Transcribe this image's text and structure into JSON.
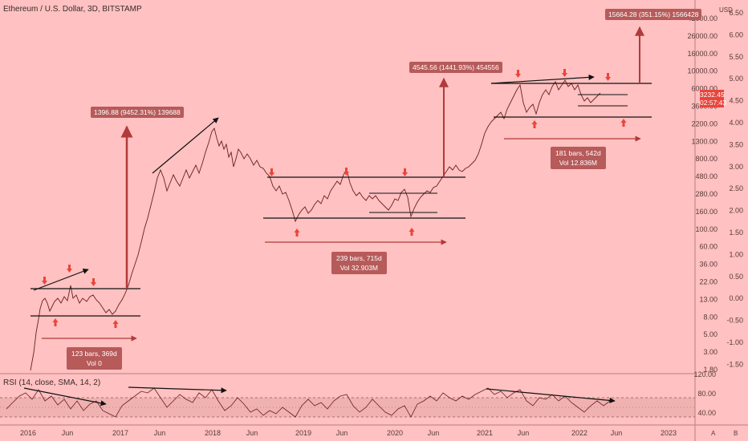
{
  "header": {
    "symbol_title": "Ethereum / U.S. Dollar, 3D, BITSTAMP",
    "rsi_title": "RSI (14, close, SMA, 14, 2)"
  },
  "price_tag": {
    "value": "3232.45",
    "countdown": "02:57:43"
  },
  "currency": "USD",
  "annotations": {
    "target1": "1396.88 (9452.31%) 139688",
    "target2": "4545.56 (1441.93%) 454556",
    "target3": "15664.28 (351.15%) 1566428",
    "range1_bars": "123 bars, 369d",
    "range1_vol": "Vol 0",
    "range2_bars": "239 bars, 715d",
    "range2_vol": "Vol 32.903M",
    "range3_bars": "181 bars, 542d",
    "range3_vol": "Vol 12.836M"
  },
  "axes": {
    "price_ticks": [
      "42000.00",
      "26000.00",
      "16000.00",
      "10000.00",
      "6000.00",
      "3600.00",
      "2200.00",
      "1300.00",
      "800.00",
      "480.00",
      "280.00",
      "160.00",
      "100.00",
      "60.00",
      "36.00",
      "22.00",
      "13.00",
      "8.00",
      "5.00",
      "3.00",
      "1.80"
    ],
    "right_ticks": [
      "6.50",
      "6.00",
      "5.50",
      "5.00",
      "4.50",
      "4.00",
      "3.50",
      "3.00",
      "2.50",
      "2.00",
      "1.50",
      "1.00",
      "0.50",
      "0.00",
      "-0.50",
      "-1.00",
      "-1.50"
    ],
    "rsi_ticks": [
      "120.00",
      "80.00",
      "40.00"
    ],
    "time_ticks": [
      "2016",
      "Jun",
      "2017",
      "Jun",
      "2018",
      "Jun",
      "2019",
      "Jun",
      "2020",
      "Jun",
      "2021",
      "Jun",
      "2022",
      "Jun",
      "2023"
    ],
    "corner_a": "A",
    "corner_b": "B"
  },
  "colors": {
    "background": "#ffc1c1",
    "price_line": "#6b1f1f",
    "arrow": "#e8453c",
    "box": "#b75a5a"
  },
  "chart_data": {
    "type": "line",
    "title": "Ethereum / U.S. Dollar, 3D, BITSTAMP",
    "scale": "log",
    "ylim": [
      1.5,
      42000
    ],
    "series": [
      {
        "x": [
          "2015-12",
          "2016-02",
          "2016-03",
          "2016-05",
          "2016-07",
          "2016-09",
          "2016-11",
          "2017-01",
          "2017-03",
          "2017-05",
          "2017-06",
          "2017-08",
          "2017-10",
          "2017-12",
          "2018-01",
          "2018-03",
          "2018-05",
          "2018-07",
          "2018-09",
          "2018-11",
          "2018-12",
          "2019-02",
          "2019-04",
          "2019-06",
          "2019-07",
          "2019-09",
          "2019-11",
          "2020-01",
          "2020-02",
          "2020-03",
          "2020-05",
          "2020-07",
          "2020-09",
          "2020-11",
          "2020-12",
          "2021-01",
          "2021-02",
          "2021-04",
          "2021-05",
          "2021-06",
          "2021-08",
          "2021-09",
          "2021-11",
          "2021-12",
          "2022-01",
          "2022-02",
          "2022-04"
        ],
        "values": [
          1,
          5,
          12,
          13,
          10,
          12,
          9,
          8,
          20,
          90,
          370,
          300,
          300,
          700,
          1300,
          700,
          600,
          450,
          220,
          160,
          110,
          130,
          160,
          300,
          200,
          180,
          180,
          130,
          260,
          130,
          210,
          240,
          380,
          450,
          700,
          1300,
          1700,
          2500,
          4000,
          2000,
          2900,
          3500,
          4800,
          3800,
          2400,
          2900,
          3232
        ]
      }
    ],
    "rsi_levels": [
      80,
      40
    ]
  }
}
